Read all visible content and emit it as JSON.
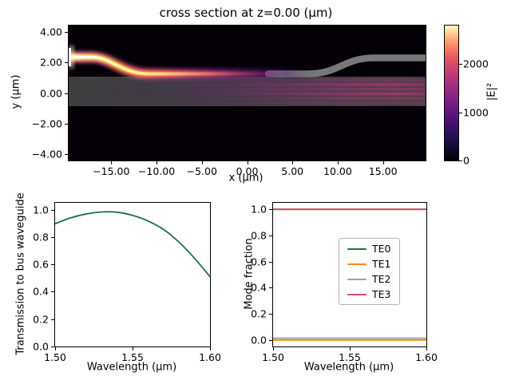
{
  "chart_data": [
    {
      "type": "heatmap",
      "title": "cross section at z=0.00 (μm)",
      "xlabel": "x (μm)",
      "ylabel": "y (μm)",
      "xlim": [
        -19.7,
        19.7
      ],
      "ylim": [
        -4.4,
        4.4
      ],
      "xticks": {
        "values": [
          -15,
          -10,
          -5,
          0,
          5,
          10,
          15
        ],
        "labels": [
          "−15.00",
          "−10.00",
          "−5.00",
          "0.00",
          "5.00",
          "10.00",
          "15.00"
        ]
      },
      "yticks": {
        "values": [
          4,
          2,
          0,
          -2,
          -4
        ],
        "labels": [
          "4.00",
          "2.00",
          "0.00",
          "−2.00",
          "−4.00"
        ]
      },
      "colorbar": {
        "label": "|E|²",
        "vmin": 0,
        "vmax": 2800,
        "ticks": {
          "values": [
            0,
            1000,
            2000
          ],
          "labels": [
            "0",
            "1000",
            "2000"
          ]
        },
        "colormap": "magma",
        "colormap_stops": [
          "#000004",
          "#51127c",
          "#b73779",
          "#fc8961",
          "#fcfdbf"
        ]
      },
      "scene": {
        "description": "|E|² field of a waveguide coupler: bright input arm enters at top-left, bends down into a horizontal coupling section and transfers power into the bus waveguide (gray slab with magenta interference fringes growing brighter to the right); unlit gray through-port arm bends up toward top-right.",
        "background": "#050008",
        "bus_waveguide_color": "#3f3f3f",
        "through_arm_color": "#787878",
        "fringe_color": "#b63679",
        "input_core_color": "#fcfdbf"
      }
    },
    {
      "type": "line",
      "xlabel": "Wavelength (μm)",
      "ylabel": "Transmission to bus waveguide",
      "xlim": [
        1.5,
        1.6
      ],
      "ylim": [
        0.0,
        1.05
      ],
      "xticks": {
        "values": [
          1.5,
          1.55,
          1.6
        ],
        "labels": [
          "1.50",
          "1.55",
          "1.60"
        ]
      },
      "yticks": {
        "values": [
          0.0,
          0.2,
          0.4,
          0.6,
          0.8,
          1.0
        ],
        "labels": [
          "0.0",
          "0.2",
          "0.4",
          "0.6",
          "0.8",
          "1.0"
        ]
      },
      "x": [
        1.5,
        1.51,
        1.52,
        1.53,
        1.54,
        1.55,
        1.56,
        1.57,
        1.58,
        1.59,
        1.6
      ],
      "series": [
        {
          "name": "transmission",
          "color": "#1d6f42",
          "values": [
            0.897,
            0.94,
            0.968,
            0.983,
            0.981,
            0.958,
            0.917,
            0.855,
            0.762,
            0.645,
            0.51
          ]
        }
      ]
    },
    {
      "type": "line",
      "xlabel": "Wavelength (μm)",
      "ylabel": "Mode fraction",
      "xlim": [
        1.5,
        1.6
      ],
      "ylim": [
        -0.05,
        1.05
      ],
      "xticks": {
        "values": [
          1.5,
          1.55,
          1.6
        ],
        "labels": [
          "1.50",
          "1.55",
          "1.60"
        ]
      },
      "yticks": {
        "values": [
          0.0,
          0.2,
          0.4,
          0.6,
          0.8,
          1.0
        ],
        "labels": [
          "0.0",
          "0.2",
          "0.4",
          "0.6",
          "0.8",
          "1.0"
        ]
      },
      "x": [
        1.5,
        1.51,
        1.52,
        1.53,
        1.54,
        1.55,
        1.56,
        1.57,
        1.58,
        1.59,
        1.6
      ],
      "series": [
        {
          "name": "TE0",
          "color": "#1d6f42",
          "values": [
            1.0,
            1.0,
            1.0,
            1.0,
            1.0,
            1.0,
            1.0,
            1.0,
            1.0,
            1.0,
            1.0
          ]
        },
        {
          "name": "TE1",
          "color": "#ff8c00",
          "values": [
            0.0,
            0.0,
            0.0,
            0.0,
            0.0,
            0.0,
            0.0,
            0.0,
            0.0,
            0.0,
            0.0
          ]
        },
        {
          "name": "TE2",
          "color": "#a0a0a0",
          "values": [
            0.013,
            0.013,
            0.013,
            0.013,
            0.013,
            0.013,
            0.013,
            0.013,
            0.013,
            0.013,
            0.013
          ]
        },
        {
          "name": "TE3",
          "color": "#de4968",
          "values": [
            1.0,
            1.0,
            1.0,
            1.0,
            1.0,
            1.0,
            1.0,
            1.0,
            1.0,
            1.0,
            1.0
          ]
        }
      ],
      "legend": {
        "location": "center right",
        "entries": [
          "TE0",
          "TE1",
          "TE2",
          "TE3"
        ]
      }
    }
  ]
}
